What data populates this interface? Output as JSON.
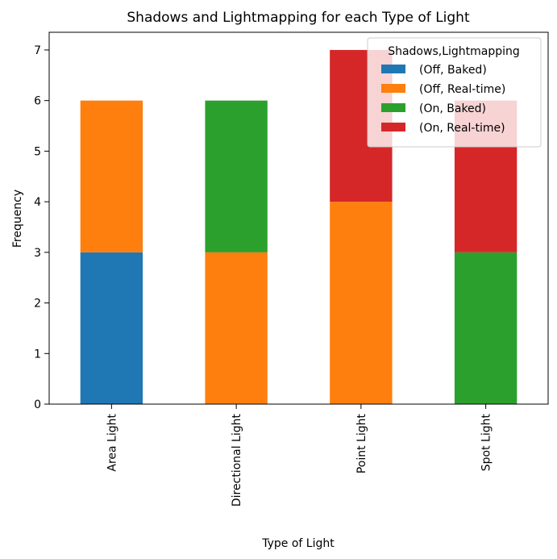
{
  "chart_data": {
    "type": "bar",
    "stacked": true,
    "title": "Shadows and Lightmapping for each Type of Light",
    "xlabel": "Type of Light",
    "ylabel": "Frequency",
    "categories": [
      "Area Light",
      "Directional Light",
      "Point Light",
      "Spot Light"
    ],
    "ylim": [
      0,
      7.35
    ],
    "yticks": [
      0,
      1,
      2,
      3,
      4,
      5,
      6,
      7
    ],
    "grid": false,
    "legend": {
      "title": "Shadows,Lightmapping",
      "placement": "top-right"
    },
    "series": [
      {
        "name": "(Off, Baked)",
        "color": "#1f77b4",
        "values": [
          3,
          0,
          0,
          0
        ]
      },
      {
        "name": "(Off, Real-time)",
        "color": "#ff7f0e",
        "values": [
          3,
          3,
          4,
          0
        ]
      },
      {
        "name": "(On, Baked)",
        "color": "#2ca02c",
        "values": [
          0,
          3,
          0,
          3
        ]
      },
      {
        "name": "(On, Real-time)",
        "color": "#d62728",
        "values": [
          0,
          0,
          3,
          3
        ]
      }
    ]
  }
}
